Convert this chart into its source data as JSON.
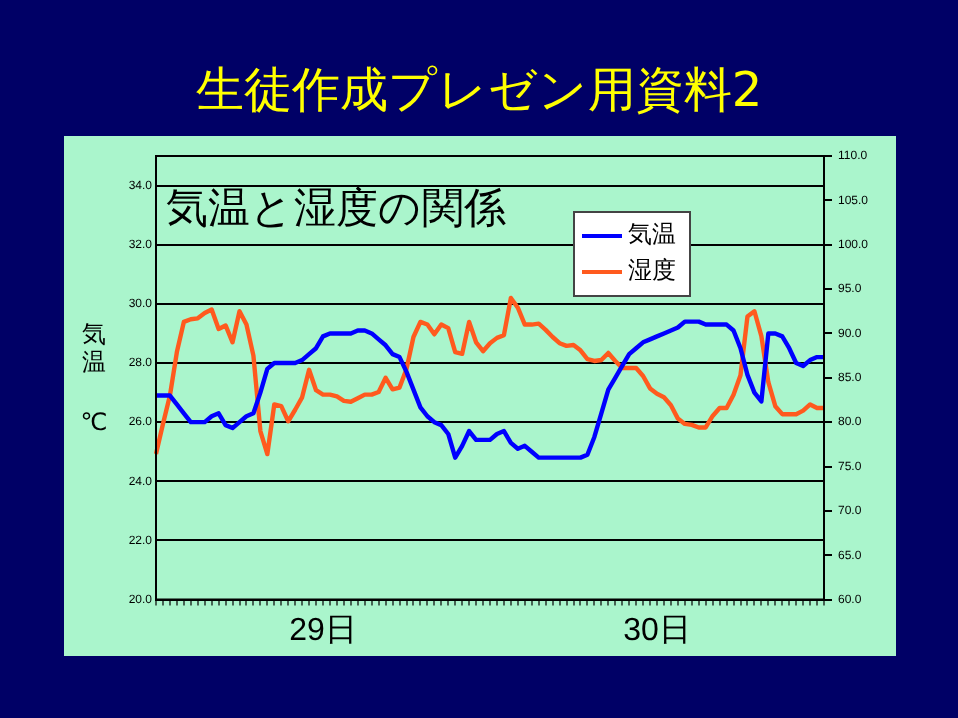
{
  "chart_data": {
    "type": "line",
    "title": "生徒作成プレゼン用資料2",
    "subtitle": "気温と湿度の関係",
    "ylabel": "気温℃",
    "categories": [
      null,
      null,
      null,
      null,
      null,
      null,
      null,
      null,
      null,
      null,
      null,
      null,
      null,
      null,
      null,
      null,
      null,
      null,
      null,
      null,
      null,
      null,
      null,
      null,
      "29日",
      null,
      null,
      null,
      null,
      null,
      null,
      null,
      null,
      null,
      null,
      null,
      null,
      null,
      null,
      null,
      null,
      null,
      null,
      null,
      null,
      null,
      null,
      null,
      null,
      null,
      null,
      null,
      null,
      null,
      null,
      null,
      null,
      null,
      null,
      null,
      null,
      null,
      null,
      null,
      null,
      null,
      null,
      null,
      null,
      null,
      null,
      null,
      "30日",
      null,
      null,
      null,
      null,
      null,
      null,
      null,
      null,
      null,
      null,
      null,
      null,
      null,
      null,
      null,
      null,
      null,
      null,
      null,
      null,
      null,
      null,
      null,
      null
    ],
    "ylim": [
      20,
      35
    ],
    "yticks": [
      {
        "value": 20,
        "label": "20.0"
      },
      {
        "value": 22,
        "label": "22.0"
      },
      {
        "value": 24,
        "label": "24.0"
      },
      {
        "value": 26,
        "label": "26.0"
      },
      {
        "value": 28,
        "label": "28.0"
      },
      {
        "value": 30,
        "label": "30.0"
      },
      {
        "value": 32,
        "label": "32.0"
      },
      {
        "value": 34,
        "label": "34.0"
      }
    ],
    "y2lim": [
      60,
      110
    ],
    "y2ticks": [
      {
        "value": 60,
        "label": "60.0"
      },
      {
        "value": 65,
        "label": "65.0"
      },
      {
        "value": 70,
        "label": "70.0"
      },
      {
        "value": 75,
        "label": "75.0"
      },
      {
        "value": 80,
        "label": "80.0"
      },
      {
        "value": 85,
        "label": "85.0"
      },
      {
        "value": 90,
        "label": "90.0"
      },
      {
        "value": 95,
        "label": "95.0"
      },
      {
        "value": 100,
        "label": "100.0"
      },
      {
        "value": 105,
        "label": "105.0"
      },
      {
        "value": 110,
        "label": "110.0"
      }
    ],
    "grid": "y",
    "legend": "top right",
    "marker": "none",
    "series": [
      {
        "name": "気温",
        "color": "#0000ff",
        "values": [
          26.9,
          26.9,
          26.9,
          26.6,
          26.3,
          26.0,
          26.0,
          26.0,
          26.2,
          26.3,
          25.9,
          25.8,
          26.0,
          26.2,
          26.3,
          27.0,
          27.8,
          28.0,
          28.0,
          28.0,
          28.0,
          28.1,
          28.3,
          28.5,
          28.9,
          29.0,
          29.0,
          29.0,
          29.0,
          29.1,
          29.1,
          29.0,
          28.8,
          28.6,
          28.3,
          28.2,
          27.7,
          27.1,
          26.5,
          26.2,
          26.0,
          25.9,
          25.6,
          24.8,
          25.2,
          25.7,
          25.4,
          25.4,
          25.4,
          25.6,
          25.7,
          25.3,
          25.1,
          25.2,
          25.0,
          24.8,
          24.8,
          24.8,
          24.8,
          24.8,
          24.8,
          24.8,
          24.9,
          25.5,
          26.3,
          27.1,
          27.5,
          27.9,
          28.3,
          28.5,
          28.7,
          28.8,
          28.9,
          29.0,
          29.1,
          29.2,
          29.4,
          29.4,
          29.4,
          29.3,
          29.3,
          29.3,
          29.3,
          29.1,
          28.5,
          27.6,
          27.0,
          26.7,
          29.0,
          29.0,
          28.9,
          28.5,
          28.0,
          27.9,
          28.1,
          28.2,
          28.2
        ]
      },
      {
        "name": "湿度",
        "color": "#ff5a1e",
        "axis": "y2",
        "values": [
          76.4,
          79.8,
          83.0,
          87.9,
          91.3,
          91.6,
          91.7,
          92.3,
          92.7,
          90.5,
          90.9,
          89.0,
          92.5,
          91.0,
          87.5,
          79.0,
          76.4,
          82.0,
          81.8,
          80.1,
          81.4,
          82.8,
          85.9,
          83.6,
          83.1,
          83.1,
          82.9,
          82.4,
          82.3,
          82.7,
          83.1,
          83.1,
          83.4,
          85.0,
          83.7,
          83.9,
          86.0,
          89.6,
          91.3,
          91.0,
          89.9,
          91.0,
          90.6,
          87.9,
          87.7,
          91.3,
          89.0,
          88.0,
          88.9,
          89.5,
          89.8,
          94.0,
          92.9,
          91.0,
          91.0,
          91.1,
          90.4,
          89.6,
          88.9,
          88.6,
          88.7,
          88.1,
          87.1,
          86.9,
          87.0,
          87.8,
          86.9,
          86.1,
          86.1,
          86.1,
          85.2,
          83.8,
          83.2,
          82.8,
          81.9,
          80.4,
          79.8,
          79.7,
          79.4,
          79.4,
          80.7,
          81.6,
          81.6,
          83.1,
          85.3,
          91.9,
          92.5,
          89.7,
          84.5,
          81.8,
          80.9,
          80.9,
          80.9,
          81.3,
          82.0,
          81.6,
          81.6
        ]
      }
    ]
  }
}
